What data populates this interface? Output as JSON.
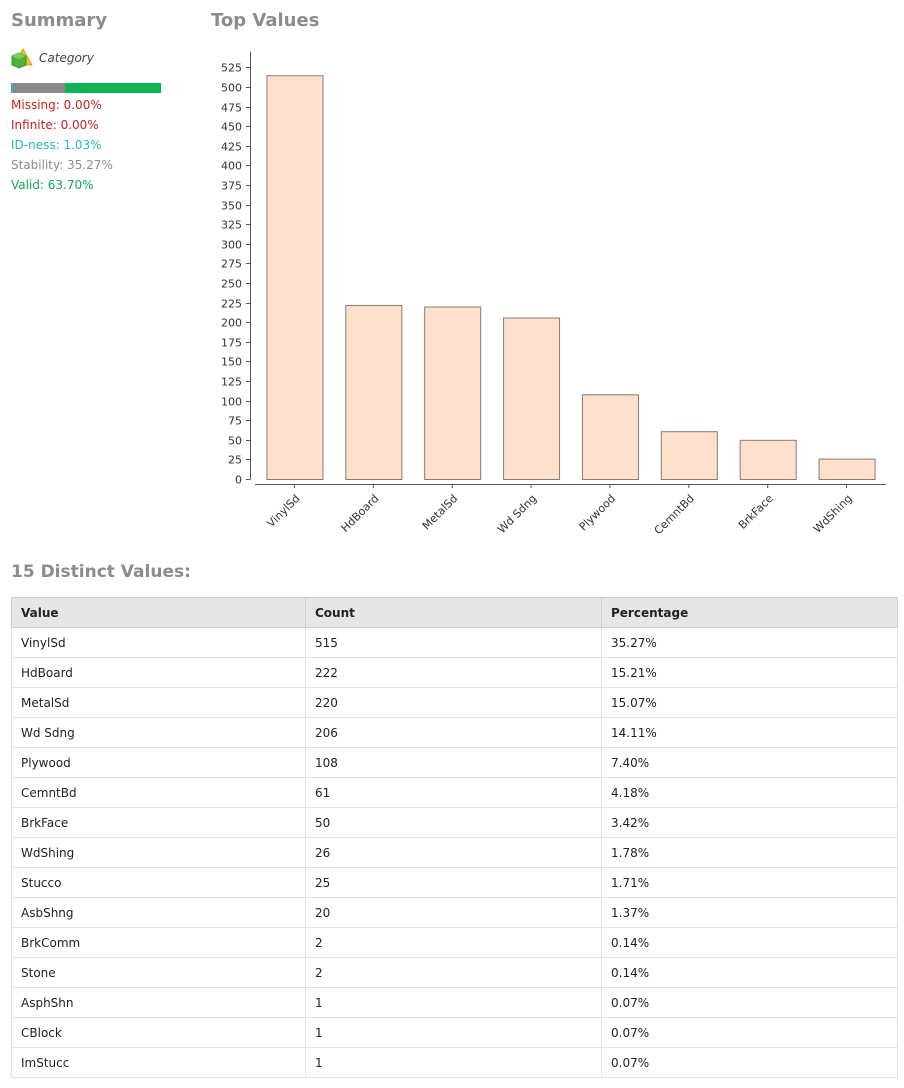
{
  "summary": {
    "title": "Summary",
    "category_label": "Category",
    "stats": {
      "missing": "Missing: 0.00%",
      "infinite": "Infinite: 0.00%",
      "idness": "ID-ness: 1.03%",
      "stability": "Stability: 35.27%",
      "valid": "Valid: 63.70%"
    },
    "bar": {
      "idness_fraction": 0.0103,
      "stability_fraction": 0.3527,
      "valid_fraction": 0.637,
      "idness_color": "#2bb5c9",
      "stability_color": "#8a8a8a",
      "valid_color": "#0fb457"
    },
    "colors": {
      "missing": "#cc1f1f",
      "infinite": "#cc1f1f",
      "idness": "#21b7c7",
      "stability": "#8c8c8c",
      "valid": "#10a850"
    }
  },
  "top_values": {
    "title": "Top Values"
  },
  "chart_data": {
    "type": "bar",
    "categories": [
      "VinylSd",
      "HdBoard",
      "MetalSd",
      "Wd Sdng",
      "Plywood",
      "CemntBd",
      "BrkFace",
      "WdShing"
    ],
    "values": [
      515,
      222,
      220,
      206,
      108,
      61,
      50,
      26
    ],
    "ylim": [
      0,
      540
    ],
    "yticks": [
      0,
      25,
      50,
      75,
      100,
      125,
      150,
      175,
      200,
      225,
      250,
      275,
      300,
      325,
      350,
      375,
      400,
      425,
      450,
      475,
      500,
      525
    ],
    "bar_color": "#ffe0cc",
    "bar_stroke": "#8a7a70",
    "grid": false,
    "title": "",
    "xlabel": "",
    "ylabel": ""
  },
  "distinct": {
    "title": "15 Distinct Values:",
    "columns": [
      "Value",
      "Count",
      "Percentage"
    ],
    "rows": [
      [
        "VinylSd",
        "515",
        "35.27%"
      ],
      [
        "HdBoard",
        "222",
        "15.21%"
      ],
      [
        "MetalSd",
        "220",
        "15.07%"
      ],
      [
        "Wd Sdng",
        "206",
        "14.11%"
      ],
      [
        "Plywood",
        "108",
        "7.40%"
      ],
      [
        "CemntBd",
        "61",
        "4.18%"
      ],
      [
        "BrkFace",
        "50",
        "3.42%"
      ],
      [
        "WdShing",
        "26",
        "1.78%"
      ],
      [
        "Stucco",
        "25",
        "1.71%"
      ],
      [
        "AsbShng",
        "20",
        "1.37%"
      ],
      [
        "BrkComm",
        "2",
        "0.14%"
      ],
      [
        "Stone",
        "2",
        "0.14%"
      ],
      [
        "AsphShn",
        "1",
        "0.07%"
      ],
      [
        "CBlock",
        "1",
        "0.07%"
      ],
      [
        "ImStucc",
        "1",
        "0.07%"
      ]
    ]
  }
}
